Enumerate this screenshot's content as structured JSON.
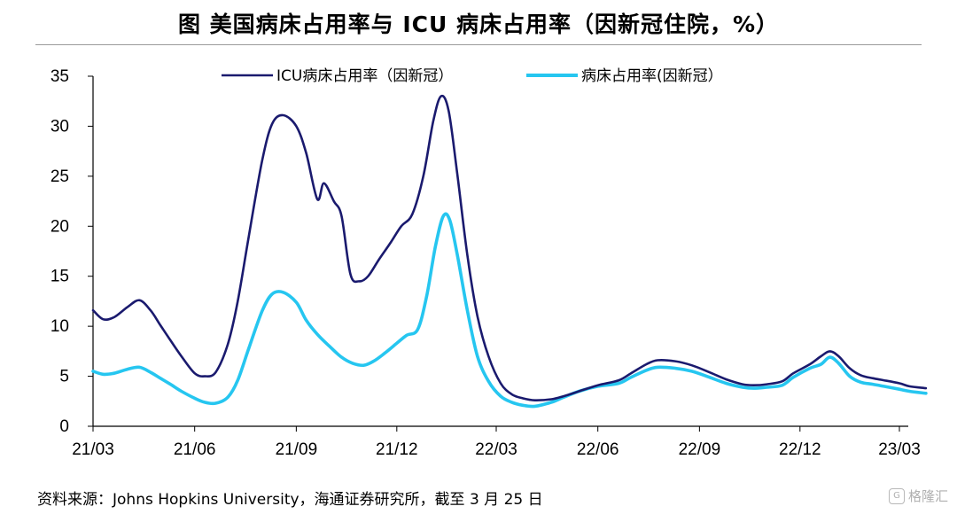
{
  "header": {
    "title": "图  美国病床占用率与 ICU 病床占用率（因新冠住院，%）"
  },
  "footer": {
    "source": "资料来源：Johns Hopkins University，海通证券研究所，截至 3 月 25 日",
    "watermark": "格隆汇"
  },
  "chart_data": {
    "type": "line",
    "ylim": [
      0,
      35
    ],
    "yticks": [
      0,
      5,
      10,
      15,
      20,
      25,
      30,
      35
    ],
    "xlim": [
      "2021-03-01",
      "2023-03-25"
    ],
    "xticks": [
      {
        "date": "2021-03-01",
        "label": "21/03"
      },
      {
        "date": "2021-06-01",
        "label": "21/06"
      },
      {
        "date": "2021-09-01",
        "label": "21/09"
      },
      {
        "date": "2021-12-01",
        "label": "21/12"
      },
      {
        "date": "2022-03-01",
        "label": "22/03"
      },
      {
        "date": "2022-06-01",
        "label": "22/06"
      },
      {
        "date": "2022-09-01",
        "label": "22/09"
      },
      {
        "date": "2022-12-01",
        "label": "22/12"
      },
      {
        "date": "2023-03-01",
        "label": "23/03"
      }
    ],
    "grid": false,
    "legend_position": "top-center",
    "series": [
      {
        "name": "ICU病床占用率（因新冠）",
        "color": "#1a1a6e",
        "points": [
          [
            "2021-03-01",
            11.6
          ],
          [
            "2021-03-10",
            10.7
          ],
          [
            "2021-03-20",
            10.9
          ],
          [
            "2021-04-01",
            11.9
          ],
          [
            "2021-04-12",
            12.6
          ],
          [
            "2021-04-22",
            11.6
          ],
          [
            "2021-05-01",
            10.1
          ],
          [
            "2021-05-10",
            8.6
          ],
          [
            "2021-05-20",
            7.0
          ],
          [
            "2021-06-01",
            5.3
          ],
          [
            "2021-06-10",
            5.0
          ],
          [
            "2021-06-20",
            5.4
          ],
          [
            "2021-07-01",
            8.2
          ],
          [
            "2021-07-10",
            12.5
          ],
          [
            "2021-07-20",
            19.0
          ],
          [
            "2021-08-01",
            26.5
          ],
          [
            "2021-08-10",
            30.2
          ],
          [
            "2021-08-20",
            31.1
          ],
          [
            "2021-09-01",
            30.0
          ],
          [
            "2021-09-10",
            27.3
          ],
          [
            "2021-09-20",
            22.7
          ],
          [
            "2021-09-26",
            24.3
          ],
          [
            "2021-10-05",
            22.5
          ],
          [
            "2021-10-12",
            21.0
          ],
          [
            "2021-10-20",
            15.2
          ],
          [
            "2021-10-28",
            14.5
          ],
          [
            "2021-11-05",
            15.0
          ],
          [
            "2021-11-15",
            16.7
          ],
          [
            "2021-11-25",
            18.3
          ],
          [
            "2021-12-05",
            20.0
          ],
          [
            "2021-12-15",
            21.2
          ],
          [
            "2021-12-25",
            25.0
          ],
          [
            "2022-01-03",
            30.5
          ],
          [
            "2022-01-10",
            33.0
          ],
          [
            "2022-01-17",
            31.5
          ],
          [
            "2022-01-25",
            25.0
          ],
          [
            "2022-02-03",
            17.0
          ],
          [
            "2022-02-12",
            11.0
          ],
          [
            "2022-02-22",
            7.0
          ],
          [
            "2022-03-05",
            4.3
          ],
          [
            "2022-03-15",
            3.2
          ],
          [
            "2022-03-25",
            2.8
          ],
          [
            "2022-04-05",
            2.6
          ],
          [
            "2022-04-20",
            2.7
          ],
          [
            "2022-05-01",
            3.0
          ],
          [
            "2022-05-15",
            3.5
          ],
          [
            "2022-06-01",
            4.1
          ],
          [
            "2022-06-20",
            4.6
          ],
          [
            "2022-07-01",
            5.3
          ],
          [
            "2022-07-15",
            6.2
          ],
          [
            "2022-07-25",
            6.6
          ],
          [
            "2022-08-10",
            6.5
          ],
          [
            "2022-08-25",
            6.1
          ],
          [
            "2022-09-10",
            5.4
          ],
          [
            "2022-09-25",
            4.7
          ],
          [
            "2022-10-10",
            4.2
          ],
          [
            "2022-10-20",
            4.1
          ],
          [
            "2022-11-01",
            4.2
          ],
          [
            "2022-11-15",
            4.5
          ],
          [
            "2022-11-25",
            5.3
          ],
          [
            "2022-12-10",
            6.2
          ],
          [
            "2022-12-20",
            7.0
          ],
          [
            "2022-12-28",
            7.5
          ],
          [
            "2023-01-05",
            7.0
          ],
          [
            "2023-01-15",
            5.8
          ],
          [
            "2023-01-25",
            5.1
          ],
          [
            "2023-02-05",
            4.8
          ],
          [
            "2023-02-15",
            4.6
          ],
          [
            "2023-03-01",
            4.3
          ],
          [
            "2023-03-10",
            4.0
          ],
          [
            "2023-03-25",
            3.8
          ]
        ]
      },
      {
        "name": "病床占用率(因新冠）",
        "color": "#26c6f0",
        "points": [
          [
            "2021-03-01",
            5.5
          ],
          [
            "2021-03-10",
            5.2
          ],
          [
            "2021-03-20",
            5.3
          ],
          [
            "2021-04-01",
            5.7
          ],
          [
            "2021-04-12",
            5.9
          ],
          [
            "2021-04-22",
            5.4
          ],
          [
            "2021-05-01",
            4.8
          ],
          [
            "2021-05-10",
            4.2
          ],
          [
            "2021-05-20",
            3.5
          ],
          [
            "2021-06-01",
            2.8
          ],
          [
            "2021-06-10",
            2.4
          ],
          [
            "2021-06-20",
            2.3
          ],
          [
            "2021-07-01",
            2.9
          ],
          [
            "2021-07-10",
            4.6
          ],
          [
            "2021-07-20",
            7.8
          ],
          [
            "2021-08-01",
            11.5
          ],
          [
            "2021-08-10",
            13.2
          ],
          [
            "2021-08-20",
            13.4
          ],
          [
            "2021-09-01",
            12.4
          ],
          [
            "2021-09-10",
            10.6
          ],
          [
            "2021-09-20",
            9.2
          ],
          [
            "2021-10-01",
            8.0
          ],
          [
            "2021-10-12",
            6.9
          ],
          [
            "2021-10-22",
            6.3
          ],
          [
            "2021-11-01",
            6.1
          ],
          [
            "2021-11-10",
            6.5
          ],
          [
            "2021-11-20",
            7.3
          ],
          [
            "2021-12-01",
            8.3
          ],
          [
            "2021-12-10",
            9.1
          ],
          [
            "2021-12-20",
            9.7
          ],
          [
            "2021-12-28",
            13.0
          ],
          [
            "2022-01-05",
            18.0
          ],
          [
            "2022-01-12",
            21.0
          ],
          [
            "2022-01-18",
            20.6
          ],
          [
            "2022-01-25",
            17.0
          ],
          [
            "2022-02-03",
            11.5
          ],
          [
            "2022-02-12",
            7.0
          ],
          [
            "2022-02-22",
            4.5
          ],
          [
            "2022-03-05",
            3.0
          ],
          [
            "2022-03-15",
            2.4
          ],
          [
            "2022-03-25",
            2.1
          ],
          [
            "2022-04-05",
            2.0
          ],
          [
            "2022-04-20",
            2.4
          ],
          [
            "2022-05-01",
            2.9
          ],
          [
            "2022-05-15",
            3.5
          ],
          [
            "2022-06-01",
            4.0
          ],
          [
            "2022-06-20",
            4.3
          ],
          [
            "2022-07-01",
            4.9
          ],
          [
            "2022-07-15",
            5.6
          ],
          [
            "2022-07-25",
            5.9
          ],
          [
            "2022-08-10",
            5.8
          ],
          [
            "2022-08-25",
            5.5
          ],
          [
            "2022-09-10",
            4.9
          ],
          [
            "2022-09-25",
            4.3
          ],
          [
            "2022-10-10",
            3.9
          ],
          [
            "2022-10-20",
            3.8
          ],
          [
            "2022-11-01",
            3.9
          ],
          [
            "2022-11-15",
            4.1
          ],
          [
            "2022-11-25",
            4.9
          ],
          [
            "2022-12-10",
            5.8
          ],
          [
            "2022-12-20",
            6.2
          ],
          [
            "2022-12-28",
            6.9
          ],
          [
            "2023-01-05",
            6.3
          ],
          [
            "2023-01-15",
            5.0
          ],
          [
            "2023-01-25",
            4.4
          ],
          [
            "2023-02-05",
            4.2
          ],
          [
            "2023-02-15",
            4.0
          ],
          [
            "2023-03-01",
            3.7
          ],
          [
            "2023-03-10",
            3.5
          ],
          [
            "2023-03-25",
            3.3
          ]
        ]
      }
    ]
  }
}
